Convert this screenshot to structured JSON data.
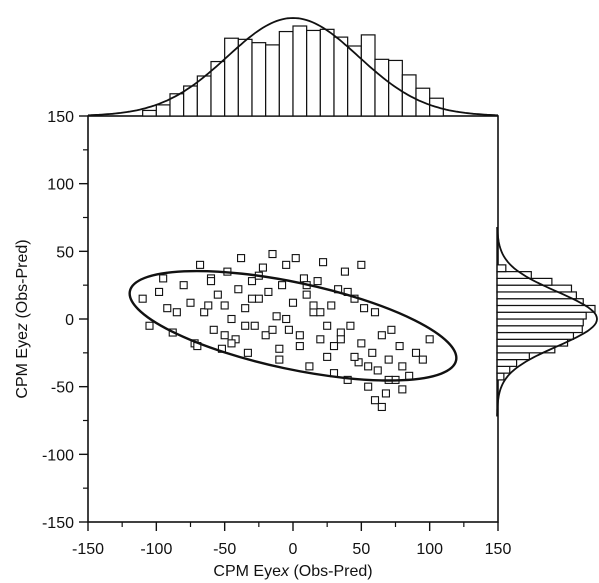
{
  "chart_data": {
    "type": "scatter",
    "xlabel_prefix": "CPM Eye",
    "xlabel_var": "x",
    "xlabel_suffix": " (Obs-Pred)",
    "ylabel_prefix": "CPM Eye",
    "ylabel_var": "z",
    "ylabel_suffix": " (Obs-Pred)",
    "xlim": [
      -150,
      150
    ],
    "ylim": [
      -150,
      150
    ],
    "xticks": [
      "-150",
      "-100",
      "-50",
      "0",
      "50",
      "100",
      "150"
    ],
    "yticks": [
      "150",
      "100",
      "50",
      "0",
      "-50",
      "-100",
      "-150"
    ],
    "xtick_values": [
      -150,
      -100,
      -50,
      0,
      50,
      100,
      150
    ],
    "ytick_values": [
      150,
      100,
      50,
      0,
      -50,
      -100,
      -150
    ],
    "grid": false,
    "legend": "none",
    "marker": "open-square",
    "colors": {
      "ink": "#111111",
      "cloud": "#c8c8c8"
    },
    "confidence_ellipse": {
      "center": [
        0,
        -5
      ],
      "semi_major": 122,
      "semi_minor": 32,
      "angle_deg": -12
    },
    "scatter_sample": {
      "x": [
        -110,
        -105,
        -98,
        -92,
        -88,
        -80,
        -75,
        -72,
        -68,
        -65,
        -60,
        -58,
        -55,
        -52,
        -50,
        -48,
        -45,
        -42,
        -40,
        -38,
        -35,
        -33,
        -30,
        -28,
        -25,
        -22,
        -20,
        -18,
        -15,
        -12,
        -10,
        -8,
        -5,
        -3,
        0,
        2,
        5,
        8,
        10,
        12,
        15,
        18,
        20,
        22,
        25,
        28,
        30,
        33,
        35,
        38,
        40,
        42,
        45,
        48,
        50,
        52,
        55,
        58,
        60,
        62,
        65,
        68,
        70,
        72,
        75,
        78,
        80,
        85,
        90,
        95,
        100,
        -95,
        -70,
        -62,
        -45,
        -30,
        -15,
        5,
        20,
        35,
        55,
        70,
        40,
        25,
        10,
        -5,
        -25,
        -50,
        60,
        45,
        30,
        15,
        -10,
        -35,
        -60,
        -85,
        80,
        50,
        65
      ],
      "y": [
        15,
        -5,
        20,
        8,
        -10,
        25,
        12,
        -18,
        40,
        5,
        30,
        -8,
        18,
        -22,
        10,
        35,
        0,
        -15,
        22,
        45,
        8,
        -25,
        28,
        -5,
        15,
        38,
        -12,
        20,
        48,
        2,
        -30,
        25,
        40,
        -8,
        12,
        45,
        -20,
        30,
        18,
        -35,
        5,
        28,
        -15,
        42,
        -28,
        10,
        -40,
        22,
        -10,
        35,
        -45,
        -5,
        15,
        -32,
        -18,
        8,
        -50,
        -25,
        5,
        -38,
        -12,
        -55,
        -30,
        -8,
        -45,
        -20,
        -35,
        -42,
        -25,
        -30,
        -15,
        30,
        -20,
        10,
        -18,
        15,
        -8,
        -12,
        5,
        -15,
        -35,
        -45,
        20,
        -5,
        25,
        0,
        32,
        -12,
        -60,
        -28,
        -20,
        10,
        -22,
        -5,
        28,
        5,
        -52,
        40,
        -65
      ]
    },
    "x_histogram": {
      "bin_edges": [
        -110,
        -100,
        -90,
        -80,
        -70,
        -60,
        -50,
        -40,
        -30,
        -20,
        -10,
        0,
        10,
        20,
        30,
        40,
        50,
        60,
        70,
        80,
        90,
        100,
        110
      ],
      "heights": [
        5,
        10,
        20,
        27,
        36,
        49,
        70,
        69,
        66,
        64,
        76,
        81,
        77,
        78,
        71,
        63,
        73,
        51,
        50,
        37,
        25,
        16
      ]
    },
    "y_histogram": {
      "bin_edges": [
        -45,
        -40,
        -35,
        -30,
        -25,
        -20,
        -15,
        -10,
        -5,
        0,
        5,
        10,
        15,
        20,
        25,
        30,
        35,
        40
      ],
      "widths": [
        7,
        13,
        20,
        33,
        59,
        72,
        78,
        87,
        88,
        91,
        100,
        88,
        81,
        76,
        56,
        35,
        9
      ]
    }
  }
}
